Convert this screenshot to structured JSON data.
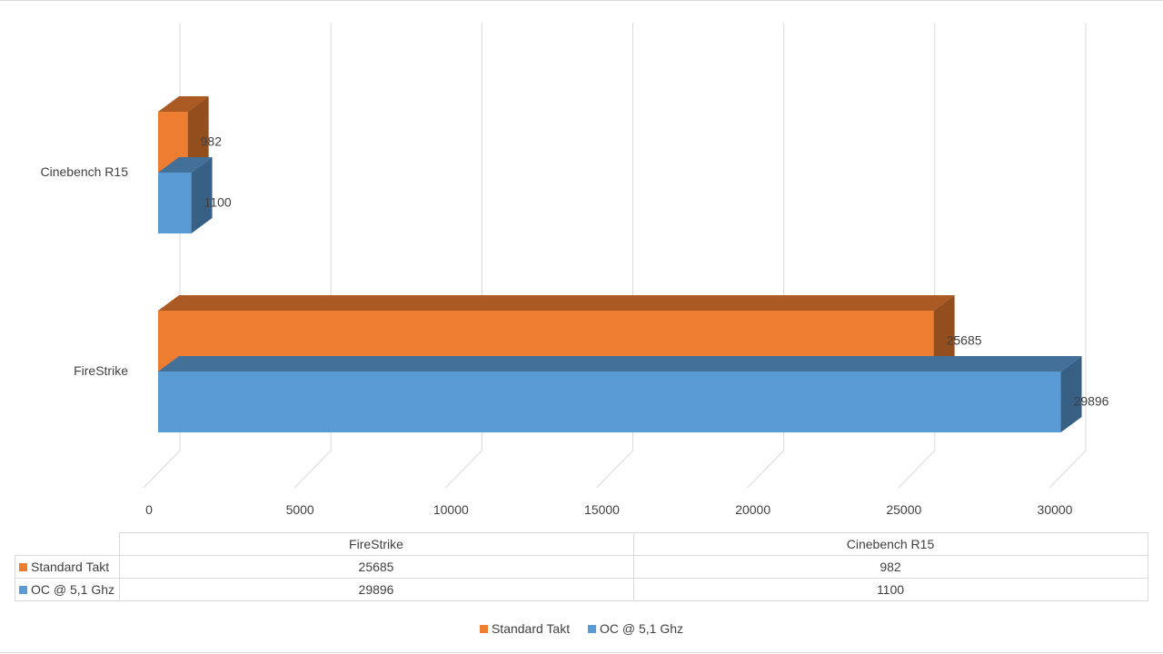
{
  "chart_data": {
    "type": "bar",
    "orientation": "horizontal",
    "style": "3d-clustered",
    "categories": [
      "Cinebench R15",
      "FireStrike"
    ],
    "series": [
      {
        "name": "Standard Takt",
        "color": "#ED7D31",
        "values": [
          982,
          25685
        ]
      },
      {
        "name": "OC @ 5,1 Ghz",
        "color": "#5B9BD5",
        "values": [
          1100,
          29896
        ]
      }
    ],
    "xlim": [
      0,
      30000
    ],
    "x_ticks": [
      0,
      5000,
      10000,
      15000,
      20000,
      25000,
      30000
    ],
    "grid": true,
    "data_labels": true,
    "legend": "bottom",
    "data_table": {
      "columns": [
        "FireStrike",
        "Cinebench R15"
      ],
      "rows": [
        {
          "label": "Standard Takt",
          "color": "#ED7D31",
          "values": [
            "25685",
            "982"
          ]
        },
        {
          "label": "OC @ 5,1 Ghz",
          "color": "#5B9BD5",
          "values": [
            "29896",
            "1100"
          ]
        }
      ]
    }
  }
}
